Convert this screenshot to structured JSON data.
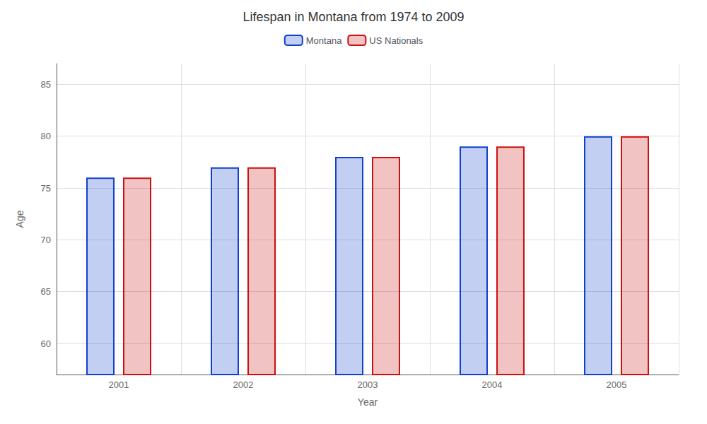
{
  "chart_data": {
    "type": "bar",
    "title": "Lifespan in Montana from 1974 to 2009",
    "xlabel": "Year",
    "ylabel": "Age",
    "categories": [
      "2001",
      "2002",
      "2003",
      "2004",
      "2005"
    ],
    "series": [
      {
        "name": "Montana",
        "color": "#1040cc",
        "values": [
          76,
          77,
          78,
          79,
          80
        ]
      },
      {
        "name": "US Nationals",
        "color": "#cc1010",
        "values": [
          76,
          77,
          78,
          79,
          80
        ]
      }
    ],
    "ylim": [
      57,
      87
    ],
    "yticks": [
      60,
      65,
      70,
      75,
      80,
      85
    ],
    "grid": true,
    "legend": "top"
  }
}
